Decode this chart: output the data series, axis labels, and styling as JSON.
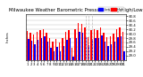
{
  "title": "Milwaukee Weather Barometric Pressure  Daily High/Low",
  "title_fontsize": 3.8,
  "tick_fontsize": 2.8,
  "background_color": "#ffffff",
  "bar_width": 0.4,
  "high_color": "#ff0000",
  "low_color": "#0000ff",
  "grid_color": "#bbbbbb",
  "ylim": [
    28.8,
    30.9
  ],
  "yticks": [
    29.0,
    29.2,
    29.4,
    29.6,
    29.8,
    30.0,
    30.2,
    30.4,
    30.6,
    30.8
  ],
  "highs": [
    30.12,
    30.05,
    29.95,
    30.1,
    30.18,
    30.22,
    30.05,
    29.8,
    29.65,
    29.75,
    29.6,
    29.82,
    30.1,
    30.15,
    29.35,
    30.2,
    30.5,
    30.45,
    30.28,
    29.85,
    30.15,
    30.22,
    30.18,
    30.28,
    30.05,
    29.85,
    29.9,
    30.0,
    30.22,
    30.28,
    30.1
  ],
  "lows": [
    29.75,
    29.68,
    29.52,
    29.7,
    29.8,
    29.9,
    29.62,
    29.35,
    29.2,
    29.4,
    29.18,
    29.45,
    29.72,
    29.8,
    28.95,
    29.82,
    30.08,
    30.05,
    29.85,
    29.48,
    29.75,
    29.82,
    29.78,
    29.92,
    29.62,
    29.42,
    29.5,
    29.62,
    29.85,
    29.9,
    29.2
  ],
  "dashed_lines": [
    18,
    19,
    20
  ],
  "legend_high": "High",
  "legend_low": "Low",
  "ylabel": "Inches",
  "n_days": 31
}
